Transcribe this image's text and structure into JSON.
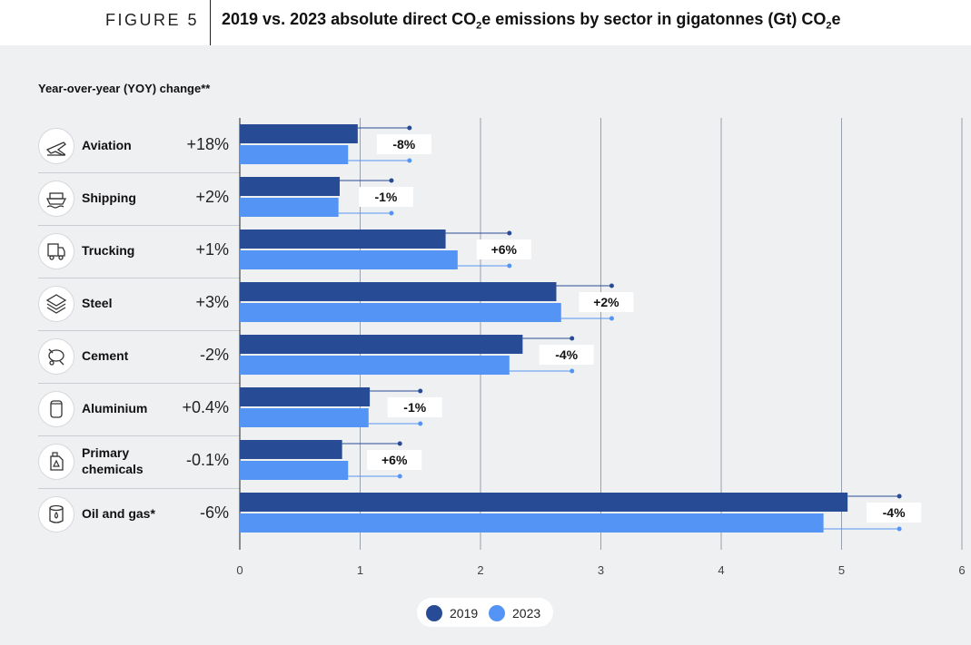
{
  "header": {
    "figure_label": "FIGURE 5",
    "title_part1": "2019 vs. 2023 absolute direct CO",
    "title_sub1": "2",
    "title_part2": "e emissions by sector in gigatonnes (Gt) CO",
    "title_sub2": "2",
    "title_part3": "e"
  },
  "yoy_title": "Year-over-year (YOY) change**",
  "colors": {
    "series_2019": "#284b96",
    "series_2023": "#5494f5",
    "grid": "#9aa0aa",
    "background": "#eff0f2"
  },
  "sectors": [
    {
      "label": "Aviation",
      "yoy": "+18%",
      "icon": "airplane-icon"
    },
    {
      "label": "Shipping",
      "yoy": "+2%",
      "icon": "ship-icon"
    },
    {
      "label": "Trucking",
      "yoy": "+1%",
      "icon": "truck-icon"
    },
    {
      "label": "Steel",
      "yoy": "+3%",
      "icon": "steel-beam-icon"
    },
    {
      "label": "Cement",
      "yoy": "-2%",
      "icon": "cement-mixer-icon"
    },
    {
      "label": "Aluminium",
      "yoy": "+0.4%",
      "icon": "aluminium-can-icon"
    },
    {
      "label": "Primary\nchemicals",
      "yoy": "-0.1%",
      "icon": "chemical-canister-icon"
    },
    {
      "label": "Oil and gas*",
      "yoy": "-6%",
      "icon": "oil-barrel-icon"
    }
  ],
  "legend": [
    {
      "label": "2019",
      "color": "#284b96"
    },
    {
      "label": "2023",
      "color": "#5494f5"
    }
  ],
  "chart_data": {
    "type": "bar",
    "orientation": "horizontal",
    "categories": [
      "Aviation",
      "Shipping",
      "Trucking",
      "Steel",
      "Cement",
      "Aluminium",
      "Primary chemicals",
      "Oil and gas*"
    ],
    "series": [
      {
        "name": "2019",
        "values": [
          0.98,
          0.83,
          1.71,
          2.63,
          2.35,
          1.08,
          0.85,
          5.05
        ]
      },
      {
        "name": "2023",
        "values": [
          0.9,
          0.82,
          1.81,
          2.67,
          2.24,
          1.07,
          0.9,
          4.85
        ]
      }
    ],
    "marker_2019": [
      1.41,
      1.26,
      2.24,
      3.09,
      2.76,
      1.5,
      1.33,
      5.48
    ],
    "marker_2023": [
      1.41,
      1.26,
      2.24,
      3.09,
      2.76,
      1.5,
      1.33,
      5.48
    ],
    "marker_labels": [
      "-8%",
      "-1%",
      "+6%",
      "+2%",
      "-4%",
      "-1%",
      "+6%",
      "-4%"
    ],
    "xlim": [
      0,
      6
    ],
    "xticks": [
      "0",
      "1",
      "2",
      "3",
      "4",
      "5",
      "6"
    ],
    "grid": true,
    "legend_position": "bottom-center"
  }
}
